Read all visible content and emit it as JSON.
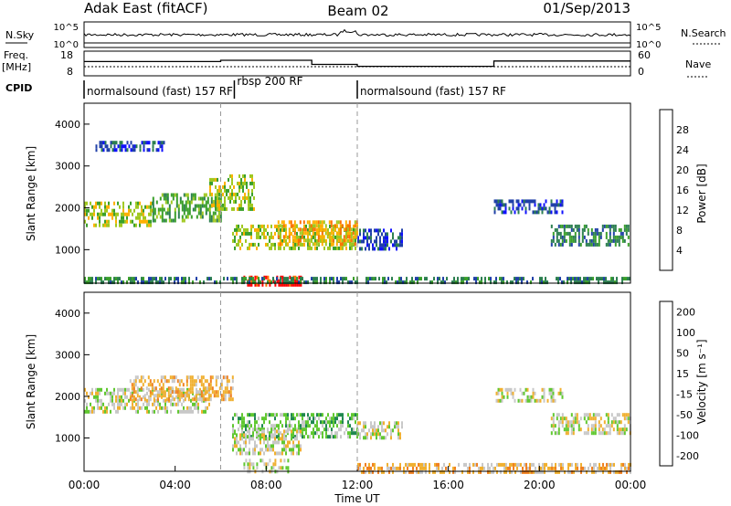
{
  "header": {
    "station": "Adak East (fitACF)",
    "beam": "Beam 02",
    "date": "01/Sep/2013"
  },
  "panel_labels": {
    "nsky": "N.Sky",
    "nsearch": "N.Search",
    "freq": "Freq.",
    "freq_unit": "[MHz]",
    "nave": "Nave",
    "cpid": "CPID"
  },
  "cpid_segments": [
    {
      "label": "normalsound (fast) 157 RF",
      "start_hour": 0.0,
      "end_hour": 6.6
    },
    {
      "label": "rbsp 200 RF",
      "start_hour": 6.6,
      "end_hour": 12.0
    },
    {
      "label": "normalsound (fast) 157 RF",
      "start_hour": 12.0,
      "end_hour": 24.0
    }
  ],
  "chart_data": [
    {
      "type": "line",
      "name": "noise-panel",
      "y_left_ticks": [
        "10^5",
        "10^0"
      ],
      "y_right_ticks": [
        "10^5",
        "10^0"
      ]
    },
    {
      "type": "line",
      "name": "frequency-nave-panel",
      "y_left_ticks": [
        "18",
        "8"
      ],
      "y_right_ticks": [
        "60",
        "0"
      ],
      "freq_steps": [
        {
          "start_hour": 0.0,
          "end_hour": 6.0,
          "value": 13.5
        },
        {
          "start_hour": 6.0,
          "end_hour": 10.0,
          "value": 14.2
        },
        {
          "start_hour": 10.0,
          "end_hour": 12.0,
          "value": 12.0
        },
        {
          "start_hour": 12.0,
          "end_hour": 18.0,
          "value": 11.0
        },
        {
          "start_hour": 18.0,
          "end_hour": 24.0,
          "value": 13.8
        }
      ]
    },
    {
      "type": "heatmap",
      "name": "power",
      "ylabel": "Slant Range [km]",
      "yticks": [
        "1000",
        "2000",
        "3000",
        "4000"
      ],
      "ylim": [
        200,
        4500
      ],
      "xlim": [
        0,
        24
      ],
      "colorbar_label": "Power [dB]",
      "colorbar_ticks": [
        "4",
        "8",
        "12",
        "16",
        "20",
        "24",
        "28"
      ],
      "colorbar_colors": [
        "#1010ff",
        "#2040a8",
        "#2c7f50",
        "#3aa02a",
        "#a0c820",
        "#ffb000",
        "#ff7000",
        "#ff0000"
      ],
      "bands": [
        {
          "h0": 0.0,
          "h1": 3.0,
          "r0": 1550,
          "r1": 2150,
          "level": 4
        },
        {
          "h0": 3.0,
          "h1": 6.0,
          "r0": 1700,
          "r1": 2350,
          "level": 3
        },
        {
          "h0": 5.5,
          "h1": 7.5,
          "r0": 2000,
          "r1": 2800,
          "level": 4
        },
        {
          "h0": 6.5,
          "h1": 12.0,
          "r0": 1000,
          "r1": 1600,
          "level": 4
        },
        {
          "h0": 8.5,
          "h1": 12.0,
          "r0": 1100,
          "r1": 1700,
          "level": 5
        },
        {
          "h0": 0.5,
          "h1": 3.5,
          "r0": 3400,
          "r1": 3600,
          "level": 1
        },
        {
          "h0": 7.0,
          "h1": 9.5,
          "r0": 200,
          "r1": 380,
          "level": 7
        },
        {
          "h0": 12.0,
          "h1": 14.0,
          "r0": 1000,
          "r1": 1500,
          "level": 1
        },
        {
          "h0": 18.0,
          "h1": 21.0,
          "r0": 1900,
          "r1": 2200,
          "level": 1
        },
        {
          "h0": 20.5,
          "h1": 24.0,
          "r0": 1100,
          "r1": 1600,
          "level": 2
        },
        {
          "h0": 0.0,
          "h1": 24.0,
          "r0": 200,
          "r1": 350,
          "level": 2
        }
      ]
    },
    {
      "type": "heatmap",
      "name": "velocity",
      "ylabel": "Slant Range [km]",
      "yticks": [
        "1000",
        "2000",
        "3000",
        "4000"
      ],
      "ylim": [
        200,
        4500
      ],
      "xlim": [
        0,
        24
      ],
      "xlabel": "Time UT",
      "xticks": [
        "00:00",
        "04:00",
        "08:00",
        "12:00",
        "16:00",
        "20:00",
        "00:00"
      ],
      "colorbar_label": "Velocity [m s⁻¹]",
      "colorbar_ticks": [
        "200",
        "100",
        "50",
        "15",
        "-15",
        "-50",
        "-100",
        "-200"
      ],
      "colorbar_colors": [
        "#1830c8",
        "#1878b0",
        "#208850",
        "#60c830",
        "#c8c8c8",
        "#f0b030",
        "#f08020",
        "#f04010",
        "#f00000"
      ],
      "bands": [
        {
          "h0": 0.0,
          "h1": 5.5,
          "r0": 1600,
          "r1": 2200,
          "level": 4
        },
        {
          "h0": 2.0,
          "h1": 6.5,
          "r0": 1900,
          "r1": 2500,
          "level": 5
        },
        {
          "h0": 6.5,
          "h1": 12.0,
          "r0": 1000,
          "r1": 1600,
          "level": 3
        },
        {
          "h0": 6.5,
          "h1": 9.5,
          "r0": 600,
          "r1": 1200,
          "level": 4
        },
        {
          "h0": 7.0,
          "h1": 9.0,
          "r0": 200,
          "r1": 500,
          "level": 4
        },
        {
          "h0": 12.0,
          "h1": 24.0,
          "r0": 200,
          "r1": 400,
          "level": 5
        },
        {
          "h0": 20.5,
          "h1": 24.0,
          "r0": 1100,
          "r1": 1600,
          "level": 4
        },
        {
          "h0": 18.0,
          "h1": 21.0,
          "r0": 1900,
          "r1": 2200,
          "level": 4
        },
        {
          "h0": 12.0,
          "h1": 14.0,
          "r0": 1000,
          "r1": 1400,
          "level": 4
        }
      ]
    }
  ]
}
